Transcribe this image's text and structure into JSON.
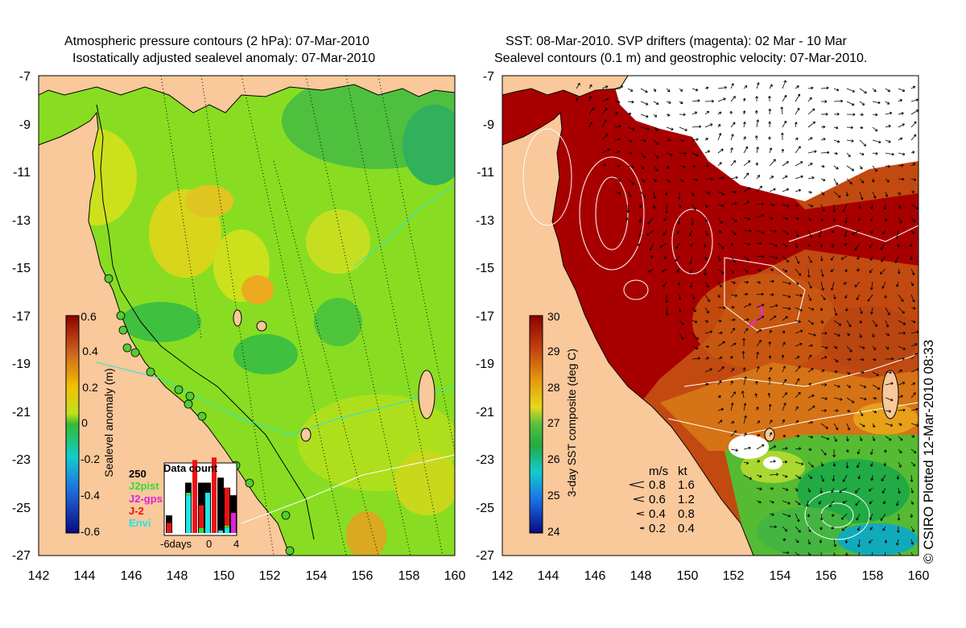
{
  "left_panel": {
    "title_line1": "Atmospheric pressure contours (2 hPa): 07-Mar-2010",
    "title_line2": "Isostatically adjusted sealevel anomaly: 07-Mar-2010",
    "y_ticks": [
      "-7",
      "-9",
      "-11",
      "-13",
      "-15",
      "-17",
      "-19",
      "-21",
      "-23",
      "-25",
      "-27"
    ],
    "x_ticks": [
      "142",
      "144",
      "146",
      "148",
      "150",
      "152",
      "154",
      "156",
      "158",
      "160"
    ],
    "colorbar": {
      "label": "Sealevel anomaly (m)",
      "ticks": [
        "0.6",
        "0.4",
        "0.2",
        "0",
        "-0.2",
        "-0.4",
        "-0.6"
      ]
    },
    "inset": {
      "title": "Data count",
      "y_max_label": "250",
      "legend": [
        {
          "label": "J2pist",
          "color": "#33dd33"
        },
        {
          "label": "J2-gps",
          "color": "#dd22dd"
        },
        {
          "label": "J-2",
          "color": "#ee1111"
        },
        {
          "label": "Envi",
          "color": "#22e5e5"
        }
      ],
      "x_labels": [
        "-6days",
        "0",
        "4"
      ],
      "bars": [
        {
          "day": -6,
          "envi": 0,
          "j2": 40,
          "j2gps": 0,
          "j2pist": 0,
          "black": 70
        },
        {
          "day": -5,
          "envi": 0,
          "j2": 0,
          "j2gps": 0,
          "j2pist": 0,
          "black": 0
        },
        {
          "day": -4,
          "envi": 0,
          "j2": 0,
          "j2gps": 0,
          "j2pist": 0,
          "black": 0
        },
        {
          "day": -3,
          "envi": 150,
          "j2": 0,
          "j2gps": 0,
          "j2pist": 10,
          "black": 200
        },
        {
          "day": -2,
          "envi": 0,
          "j2": 290,
          "j2gps": 0,
          "j2pist": 0,
          "black": 0
        },
        {
          "day": -1,
          "envi": 0,
          "j2": 90,
          "j2gps": 0,
          "j2pist": 20,
          "black": 200
        },
        {
          "day": 0,
          "envi": 160,
          "j2": 0,
          "j2gps": 0,
          "j2pist": 0,
          "black": 200
        },
        {
          "day": 1,
          "envi": 0,
          "j2": 300,
          "j2gps": 0,
          "j2pist": 0,
          "black": 0
        },
        {
          "day": 2,
          "envi": 10,
          "j2": 0,
          "j2gps": 0,
          "j2pist": 0,
          "black": 220
        },
        {
          "day": 3,
          "envi": 20,
          "j2": 150,
          "j2gps": 0,
          "j2pist": 10,
          "black": 180
        },
        {
          "day": 4,
          "envi": 0,
          "j2": 0,
          "j2gps": 80,
          "j2pist": 0,
          "black": 150
        }
      ]
    }
  },
  "right_panel": {
    "title_line1": "SST: 08-Mar-2010. SVP drifters (magenta): 02 Mar - 10 Mar",
    "title_line2": "Sealevel contours (0.1 m) and geostrophic velocity: 07-Mar-2010.",
    "y_ticks": [
      "-7",
      "-9",
      "-11",
      "-13",
      "-15",
      "-17",
      "-19",
      "-21",
      "-23",
      "-25",
      "-27"
    ],
    "x_ticks": [
      "142",
      "144",
      "146",
      "148",
      "150",
      "152",
      "154",
      "156",
      "158",
      "160"
    ],
    "colorbar": {
      "label": "3-day SST composite (deg C)",
      "ticks": [
        "30",
        "29",
        "28",
        "27",
        "26",
        "25",
        "24"
      ]
    },
    "vector_legend": {
      "header_ms": "m/s",
      "header_kt": "kt",
      "rows": [
        {
          "ms": "0.8",
          "kt": "1.6"
        },
        {
          "ms": "0.6",
          "kt": "1.2"
        },
        {
          "ms": "0.4",
          "kt": "0.8"
        },
        {
          "ms": "0.2",
          "kt": "0.4"
        }
      ]
    }
  },
  "credit": "© CSIRO Plotted 12-Mar-2010 08:33",
  "colors": {
    "land": "#f9c89b",
    "slaLow": "#00aa55",
    "slaMid": "#88dd22",
    "slaHigh": "#eedd11",
    "sstWarm": "#a80000",
    "sstMid": "#d76a10",
    "sstCool": "#33bb33"
  }
}
